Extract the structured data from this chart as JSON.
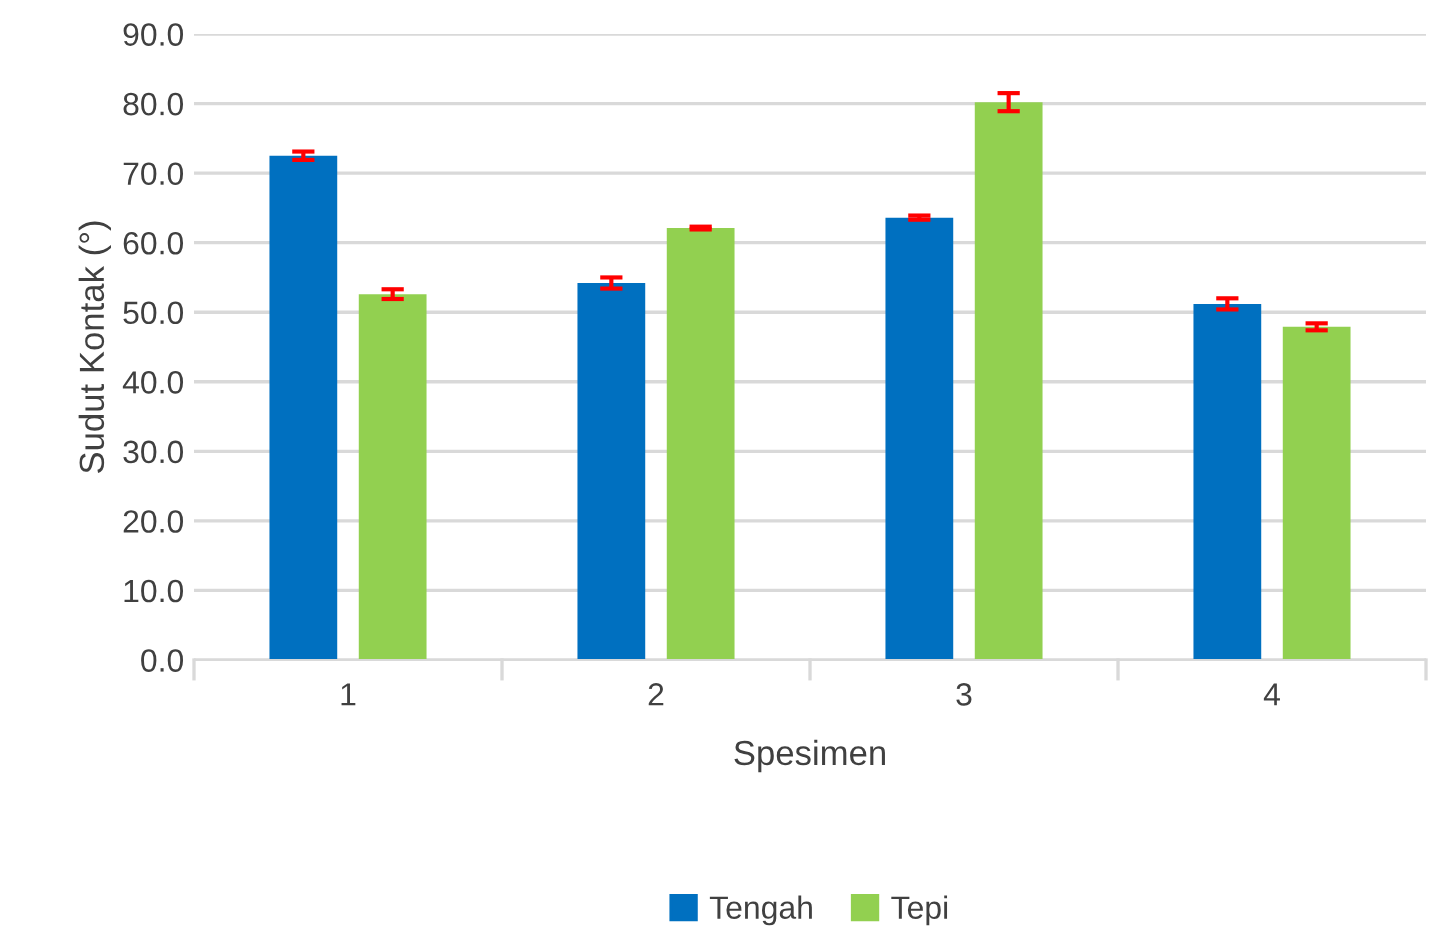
{
  "chart_data": {
    "type": "bar",
    "xlabel": "Spesimen",
    "ylabel": "Sudut Kontak (°)",
    "categories": [
      "1",
      "2",
      "3",
      "4"
    ],
    "series": [
      {
        "name": "Tengah",
        "color": "#0070c0",
        "values": [
          72.5,
          54.2,
          63.6,
          51.2
        ],
        "errors": [
          0.6,
          0.8,
          0.3,
          0.8
        ]
      },
      {
        "name": "Tepi",
        "color": "#92d050",
        "values": [
          52.6,
          62.1,
          80.2,
          47.9
        ],
        "errors": [
          0.7,
          0.2,
          1.3,
          0.5
        ]
      }
    ],
    "ylim": [
      0,
      90
    ],
    "yticks": [
      {
        "value": 0,
        "label": "0.0"
      },
      {
        "value": 10,
        "label": "10.0"
      },
      {
        "value": 20,
        "label": "20.0"
      },
      {
        "value": 30,
        "label": "30.0"
      },
      {
        "value": 40,
        "label": "40.0"
      },
      {
        "value": 50,
        "label": "50.0"
      },
      {
        "value": 60,
        "label": "60.0"
      },
      {
        "value": 70,
        "label": "70.0"
      },
      {
        "value": 80,
        "label": "80.0"
      },
      {
        "value": 90,
        "label": "90.0"
      }
    ],
    "grid": "y",
    "legend": "bottom"
  }
}
